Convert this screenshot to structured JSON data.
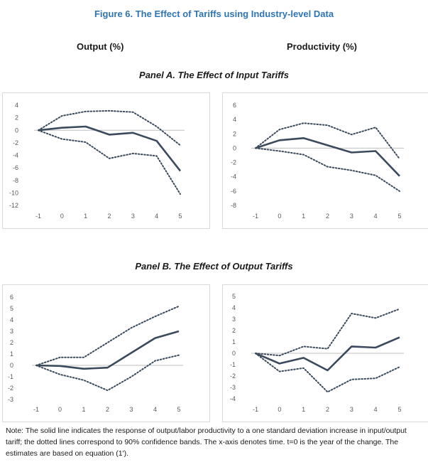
{
  "figure_title": "Figure 6. The Effect of Tariffs using Industry-level Data",
  "column_headers": {
    "left": "Output (%)",
    "right": "Productivity (%)"
  },
  "panels": {
    "a": "Panel A. The Effect of Input Tariffs",
    "b": "Panel B. The Effect of Output Tariffs"
  },
  "note": "Note: The solid line indicates the response of output/labor productivity to a one standard deviation increase in input/output tariff; the dotted lines correspond to 90% confidence bands. The x-axis denotes time. t=0 is the year of the change. The estimates are based on equation (1').",
  "colors": {
    "series": "#3b4a5c",
    "zero_line": "#bfbfbf",
    "title": "#2e75b6"
  },
  "chart_data": [
    {
      "id": "a-output",
      "type": "line",
      "x": [
        -1,
        0,
        1,
        2,
        3,
        4,
        5
      ],
      "xlim": [
        -1,
        5
      ],
      "ylim": [
        -12,
        4
      ],
      "yticks": [
        4,
        2,
        0,
        -2,
        -4,
        -6,
        -8,
        -10,
        -12
      ],
      "series": [
        {
          "name": "estimate",
          "style": "solid",
          "values": [
            0,
            0.4,
            0.6,
            -0.7,
            -0.4,
            -1.7,
            -6.5
          ]
        },
        {
          "name": "upper 90% band",
          "style": "dotted",
          "values": [
            0,
            2.3,
            3.0,
            3.1,
            2.9,
            0.6,
            -2.4
          ]
        },
        {
          "name": "lower 90% band",
          "style": "dotted",
          "values": [
            0,
            -1.4,
            -1.9,
            -4.5,
            -3.7,
            -4.1,
            -10.2
          ]
        }
      ]
    },
    {
      "id": "a-productivity",
      "type": "line",
      "x": [
        -1,
        0,
        1,
        2,
        3,
        4,
        5
      ],
      "xlim": [
        -1,
        5
      ],
      "ylim": [
        -8,
        6
      ],
      "yticks": [
        6,
        4,
        2,
        0,
        -2,
        -4,
        -6,
        -8
      ],
      "series": [
        {
          "name": "estimate",
          "style": "solid",
          "values": [
            0,
            1.1,
            1.4,
            0.4,
            -0.6,
            -0.4,
            -3.9
          ]
        },
        {
          "name": "upper 90% band",
          "style": "dotted",
          "values": [
            0,
            2.6,
            3.5,
            3.2,
            1.9,
            2.9,
            -1.5
          ]
        },
        {
          "name": "lower 90% band",
          "style": "dotted",
          "values": [
            0,
            -0.4,
            -0.9,
            -2.6,
            -3.1,
            -3.8,
            -6.0
          ]
        }
      ]
    },
    {
      "id": "b-output",
      "type": "line",
      "x": [
        -1,
        0,
        1,
        2,
        3,
        4,
        5
      ],
      "xlim": [
        -1,
        5
      ],
      "ylim": [
        -3,
        6
      ],
      "yticks": [
        6,
        5,
        4,
        3,
        2,
        1,
        0,
        -1,
        -2,
        -3
      ],
      "series": [
        {
          "name": "estimate",
          "style": "solid",
          "values": [
            0,
            -0.05,
            -0.3,
            -0.2,
            1.1,
            2.4,
            3.0
          ]
        },
        {
          "name": "upper 90% band",
          "style": "dotted",
          "values": [
            0,
            0.7,
            0.7,
            2.0,
            3.3,
            4.3,
            5.2
          ]
        },
        {
          "name": "lower 90% band",
          "style": "dotted",
          "values": [
            0,
            -0.8,
            -1.3,
            -2.2,
            -1.0,
            0.4,
            0.9
          ]
        }
      ]
    },
    {
      "id": "b-productivity",
      "type": "line",
      "x": [
        -1,
        0,
        1,
        2,
        3,
        4,
        5
      ],
      "xlim": [
        -1,
        5
      ],
      "ylim": [
        -4,
        5
      ],
      "yticks": [
        5,
        4,
        3,
        2,
        1,
        0,
        -1,
        -2,
        -3,
        -4
      ],
      "series": [
        {
          "name": "estimate",
          "style": "solid",
          "values": [
            0,
            -0.9,
            -0.4,
            -1.5,
            0.6,
            0.5,
            1.4
          ]
        },
        {
          "name": "upper 90% band",
          "style": "dotted",
          "values": [
            0,
            -0.2,
            0.6,
            0.4,
            3.5,
            3.1,
            3.9
          ]
        },
        {
          "name": "lower 90% band",
          "style": "dotted",
          "values": [
            0,
            -1.6,
            -1.3,
            -3.4,
            -2.3,
            -2.2,
            -1.2
          ]
        }
      ]
    }
  ]
}
